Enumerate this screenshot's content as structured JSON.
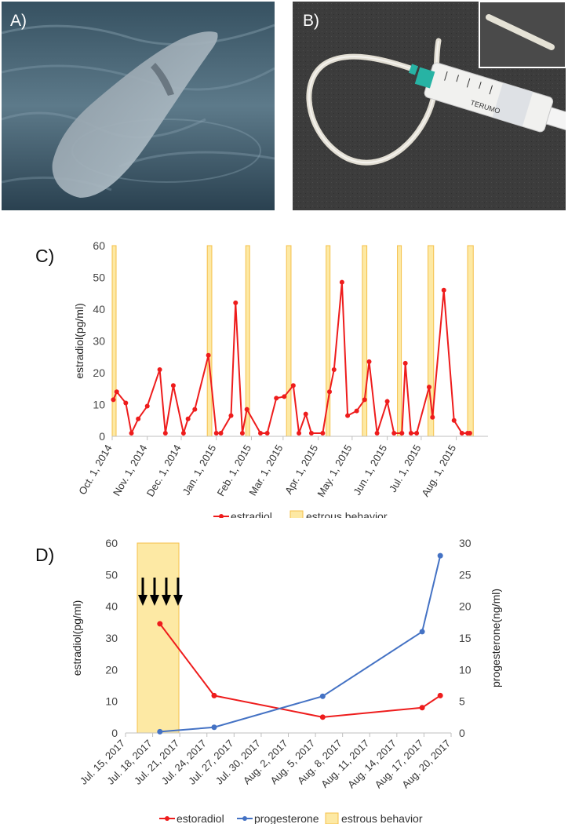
{
  "panels": {
    "a": {
      "letter": "A)",
      "subject": "dolphin-photo"
    },
    "b": {
      "letter": "B)",
      "subject": "catheter-syringe-photo"
    },
    "c": {
      "letter": "C)"
    },
    "d": {
      "letter": "D)"
    }
  },
  "syringe_print": "TERUMO",
  "colors": {
    "estradiol": "#ee1c1c",
    "progesterone": "#4472c4",
    "estrous_band": "#fde9a4",
    "estrous_band_edge": "#f5c04a",
    "axis": "#bfbfbf",
    "sea_dark": "#2c4352",
    "sea_light": "#6d8898",
    "backdrop": "#3a3a3a",
    "tube": "#e9e6dc",
    "hub": "#27b3a4"
  },
  "chart_data": [
    {
      "type": "line",
      "title": "",
      "ylabel": "estradiol(pg/ml)",
      "xlabel": "",
      "ylim": [
        0,
        60
      ],
      "yticks": [
        0,
        10,
        20,
        30,
        40,
        50,
        60
      ],
      "x_unit": "days since Oct. 1, 2014",
      "xlim": [
        0,
        332
      ],
      "x_ticks": [
        {
          "label": "Oct. 1, 2014",
          "x": 0
        },
        {
          "label": "Nov. 1, 2014",
          "x": 31
        },
        {
          "label": "Dec. 1, 2014",
          "x": 61
        },
        {
          "label": "Jan. 1, 2015",
          "x": 92
        },
        {
          "label": "Feb. 1, 2015",
          "x": 123
        },
        {
          "label": "Mar. 1, 2015",
          "x": 151
        },
        {
          "label": "Apr. 1, 2015",
          "x": 182
        },
        {
          "label": "May. 1, 2015",
          "x": 212
        },
        {
          "label": "Jun. 1, 2015",
          "x": 243
        },
        {
          "label": "Jul. 1, 2015",
          "x": 273
        },
        {
          "label": "Aug. 1, 2015",
          "x": 304
        }
      ],
      "series": [
        {
          "name": "estradiol",
          "x": [
            1,
            4,
            12,
            17,
            23,
            31,
            42,
            47,
            54,
            63,
            67,
            73,
            85,
            92,
            96,
            105,
            109,
            115,
            119,
            131,
            137,
            145,
            152,
            160,
            165,
            171,
            176,
            186,
            192,
            196,
            203,
            208,
            216,
            223,
            227,
            234,
            243,
            249,
            256,
            259,
            264,
            269,
            280,
            283,
            293,
            302,
            309,
            314,
            316
          ],
          "values": [
            11.5,
            14,
            10.5,
            1,
            5.5,
            9.5,
            21,
            1,
            16,
            1,
            5.5,
            8.5,
            25.5,
            1,
            1,
            6.5,
            42,
            1,
            8.5,
            1,
            1,
            12,
            12.5,
            16,
            1,
            7,
            1,
            1,
            14,
            21,
            48.5,
            6.5,
            8,
            11.5,
            23.5,
            1,
            11,
            1,
            1,
            23,
            1,
            1,
            15.5,
            6,
            46,
            5,
            1,
            1,
            1
          ],
          "marker": "circle"
        }
      ],
      "estrous_intervals": [
        [
          0,
          3
        ],
        [
          84,
          88
        ],
        [
          118,
          121
        ],
        [
          154,
          158
        ],
        [
          189,
          192
        ],
        [
          221,
          225
        ],
        [
          252,
          255
        ],
        [
          279,
          284
        ],
        [
          314,
          319
        ]
      ],
      "legend": [
        "estradiol",
        "estrous behavior"
      ],
      "legend_position": "bottom"
    },
    {
      "type": "line",
      "title": "",
      "ylabel": "estradiol(pg/ml)",
      "ylabel_right": "progesterone(ng/ml)",
      "ylim": [
        0,
        60
      ],
      "yticks": [
        0,
        10,
        20,
        30,
        40,
        50,
        60
      ],
      "ylim_right": [
        0,
        30
      ],
      "yticks_right": [
        0,
        5,
        10,
        15,
        20,
        25,
        30
      ],
      "x_unit": "days since Jul. 15, 2017",
      "xlim": [
        0,
        36
      ],
      "x_ticks": [
        {
          "label": "Jul. 15, 2017",
          "x": 0
        },
        {
          "label": "Jul. 18, 2017",
          "x": 3
        },
        {
          "label": "Jul. 21, 2017",
          "x": 6
        },
        {
          "label": "Jul. 24, 2017",
          "x": 9
        },
        {
          "label": "Jul. 27, 2017",
          "x": 12
        },
        {
          "label": "Jul. 30, 2017",
          "x": 15
        },
        {
          "label": "Aug. 2, 2017",
          "x": 18
        },
        {
          "label": "Aug. 5, 2017",
          "x": 21
        },
        {
          "label": "Aug. 8, 2017",
          "x": 24
        },
        {
          "label": "Aug. 11, 2017",
          "x": 27
        },
        {
          "label": "Aug. 14, 2017",
          "x": 30
        },
        {
          "label": "Aug. 17, 2017",
          "x": 33
        },
        {
          "label": "Aug. 20, 2017",
          "x": 36
        }
      ],
      "series": [
        {
          "name": "estoradiol",
          "axis": "left",
          "x": [
            2.5,
            8.5,
            20.5,
            31.5,
            33.5
          ],
          "values": [
            34.5,
            11.8,
            5,
            8,
            11.8
          ],
          "marker": "circle"
        },
        {
          "name": "progesterone",
          "axis": "right",
          "x": [
            2.5,
            8.5,
            20.5,
            31.5,
            33.5
          ],
          "values": [
            0.2,
            0.9,
            5.8,
            16,
            28
          ],
          "marker": "circle"
        }
      ],
      "estrous_intervals": [
        [
          0,
          4.6
        ]
      ],
      "arrows_day": [
        0,
        1.3,
        2.6,
        3.9
      ],
      "arrows_count": 4,
      "legend": [
        "estoradiol",
        "progesterone",
        "estrous behavior"
      ],
      "legend_position": "bottom"
    }
  ]
}
